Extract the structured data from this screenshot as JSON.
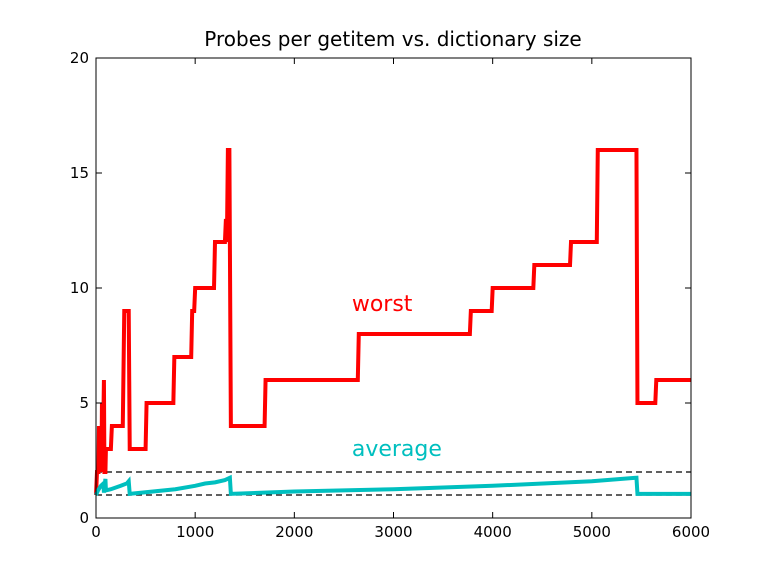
{
  "chart_data": {
    "type": "line",
    "title": "Probes per getitem vs. dictionary size",
    "xlabel": "",
    "ylabel": "",
    "xlim": [
      0,
      6000
    ],
    "ylim": [
      0,
      20
    ],
    "x_ticks": [
      0,
      1000,
      2000,
      3000,
      4000,
      5000,
      6000
    ],
    "y_ticks": [
      0,
      5,
      10,
      15,
      20
    ],
    "x_tick_labels": [
      "0",
      "1000",
      "2000",
      "3000",
      "4000",
      "5000",
      "6000"
    ],
    "y_tick_labels": [
      "0",
      "5",
      "10",
      "15",
      "20"
    ],
    "grid": false,
    "series": [
      {
        "name": "worst",
        "color": "#ff0000",
        "points": [
          [
            0,
            1
          ],
          [
            10,
            2
          ],
          [
            25,
            2
          ],
          [
            30,
            4
          ],
          [
            40,
            2
          ],
          [
            45,
            3
          ],
          [
            55,
            2
          ],
          [
            60,
            5
          ],
          [
            70,
            3
          ],
          [
            80,
            6
          ],
          [
            85,
            2
          ],
          [
            95,
            2
          ],
          [
            100,
            3
          ],
          [
            150,
            3
          ],
          [
            160,
            4
          ],
          [
            270,
            4
          ],
          [
            285,
            9
          ],
          [
            330,
            9
          ],
          [
            340,
            3
          ],
          [
            500,
            3
          ],
          [
            510,
            5
          ],
          [
            780,
            5
          ],
          [
            790,
            7
          ],
          [
            960,
            7
          ],
          [
            970,
            9
          ],
          [
            990,
            9
          ],
          [
            1000,
            10
          ],
          [
            1190,
            10
          ],
          [
            1200,
            12
          ],
          [
            1300,
            12
          ],
          [
            1310,
            13
          ],
          [
            1320,
            12
          ],
          [
            1330,
            16
          ],
          [
            1345,
            16
          ],
          [
            1360,
            4
          ],
          [
            1700,
            4
          ],
          [
            1710,
            6
          ],
          [
            2640,
            6
          ],
          [
            2650,
            8
          ],
          [
            3770,
            8
          ],
          [
            3780,
            9
          ],
          [
            3990,
            9
          ],
          [
            4000,
            10
          ],
          [
            4410,
            10
          ],
          [
            4420,
            11
          ],
          [
            4780,
            11
          ],
          [
            4790,
            12
          ],
          [
            5050,
            12
          ],
          [
            5060,
            16
          ],
          [
            5450,
            16
          ],
          [
            5460,
            5
          ],
          [
            5640,
            5
          ],
          [
            5650,
            6
          ],
          [
            6000,
            6
          ]
        ]
      },
      {
        "name": "average",
        "color": "#00bfbf",
        "points": [
          [
            0,
            1.0
          ],
          [
            20,
            1.2
          ],
          [
            50,
            1.4
          ],
          [
            75,
            1.5
          ],
          [
            80,
            1.1
          ],
          [
            90,
            1.5
          ],
          [
            95,
            1.7
          ],
          [
            100,
            1.2
          ],
          [
            150,
            1.25
          ],
          [
            250,
            1.4
          ],
          [
            310,
            1.5
          ],
          [
            330,
            1.6
          ],
          [
            340,
            1.05
          ],
          [
            500,
            1.12
          ],
          [
            800,
            1.25
          ],
          [
            1000,
            1.4
          ],
          [
            1100,
            1.5
          ],
          [
            1200,
            1.55
          ],
          [
            1300,
            1.65
          ],
          [
            1350,
            1.75
          ],
          [
            1360,
            1.05
          ],
          [
            2000,
            1.15
          ],
          [
            3000,
            1.25
          ],
          [
            4000,
            1.4
          ],
          [
            5000,
            1.6
          ],
          [
            5450,
            1.75
          ],
          [
            5460,
            1.05
          ],
          [
            6000,
            1.05
          ]
        ]
      }
    ],
    "reference_lines": [
      {
        "y": 1,
        "style": "dashed",
        "color": "#000000"
      },
      {
        "y": 2,
        "style": "dashed",
        "color": "#000000"
      }
    ],
    "annotations": [
      {
        "text": "worst",
        "x": 2580,
        "y": 9.0,
        "color": "#ff0000"
      },
      {
        "text": "average",
        "x": 2580,
        "y": 2.7,
        "color": "#00bfbf"
      }
    ]
  }
}
